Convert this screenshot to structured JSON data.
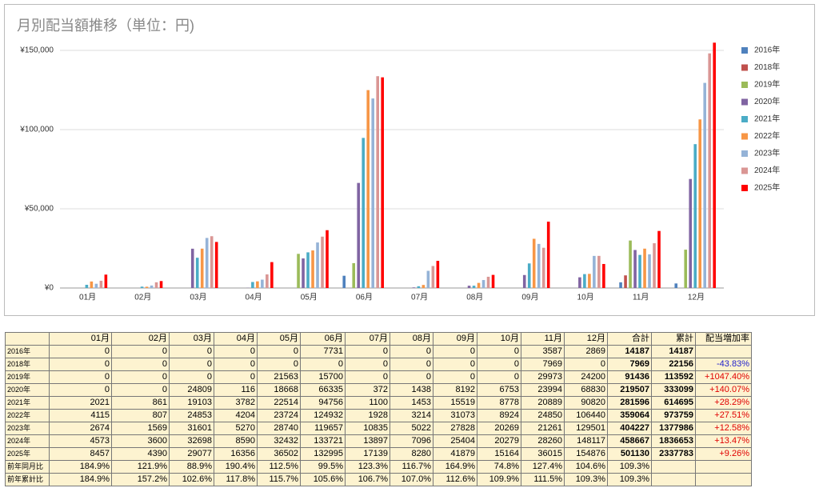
{
  "chart_data": {
    "type": "bar",
    "title": "月別配当額推移（単位：円)",
    "categories": [
      "01月",
      "02月",
      "03月",
      "04月",
      "05月",
      "06月",
      "07月",
      "08月",
      "09月",
      "10月",
      "11月",
      "12月"
    ],
    "ylim": [
      0,
      150000
    ],
    "yticks": [
      {
        "value": 0,
        "label": "¥0"
      },
      {
        "value": 50000,
        "label": "¥50,000"
      },
      {
        "value": 100000,
        "label": "¥100,000"
      },
      {
        "value": 150000,
        "label": "¥150,000"
      }
    ],
    "grid": true,
    "legend": "right",
    "series": [
      {
        "name": "2016年",
        "color": "#4f81bd",
        "values": [
          0,
          0,
          0,
          0,
          0,
          7731,
          0,
          0,
          0,
          0,
          3587,
          2869
        ]
      },
      {
        "name": "2018年",
        "color": "#c0504d",
        "values": [
          0,
          0,
          0,
          0,
          0,
          0,
          0,
          0,
          0,
          0,
          7969,
          0
        ]
      },
      {
        "name": "2019年",
        "color": "#9bbb59",
        "values": [
          0,
          0,
          0,
          0,
          21563,
          15700,
          0,
          0,
          0,
          0,
          29973,
          24200
        ]
      },
      {
        "name": "2020年",
        "color": "#8064a2",
        "values": [
          0,
          0,
          24809,
          116,
          18668,
          66335,
          372,
          1438,
          8192,
          6753,
          23994,
          68830
        ]
      },
      {
        "name": "2021年",
        "color": "#4bacc6",
        "values": [
          2021,
          861,
          19103,
          3782,
          22514,
          94756,
          1100,
          1453,
          15519,
          8778,
          20889,
          90820
        ]
      },
      {
        "name": "2022年",
        "color": "#f79646",
        "values": [
          4115,
          807,
          24853,
          4204,
          23724,
          124932,
          1928,
          3214,
          31073,
          8924,
          24850,
          106440
        ]
      },
      {
        "name": "2023年",
        "color": "#95b3d7",
        "values": [
          2674,
          1569,
          31601,
          5270,
          28740,
          119657,
          10835,
          5022,
          27828,
          20269,
          21261,
          129501
        ]
      },
      {
        "name": "2024年",
        "color": "#da9694",
        "values": [
          4573,
          3600,
          32698,
          8590,
          32432,
          133721,
          13897,
          7096,
          25404,
          20279,
          28260,
          148117
        ]
      },
      {
        "name": "2025年",
        "color": "#ff0000",
        "values": [
          8457,
          4390,
          29077,
          16356,
          36502,
          132995,
          17139,
          8280,
          41879,
          15164,
          36015,
          154876
        ]
      }
    ]
  },
  "table": {
    "header": [
      null,
      "01月",
      "02月",
      "03月",
      "04月",
      "05月",
      "06月",
      "07月",
      "08月",
      "09月",
      "10月",
      "11月",
      "12月",
      "合計",
      "累計",
      "配当増加率"
    ],
    "rows": [
      [
        "2016年",
        0,
        0,
        0,
        0,
        0,
        7731,
        0,
        0,
        0,
        0,
        3587,
        2869,
        14187,
        14187,
        null
      ],
      [
        "2018年",
        0,
        0,
        0,
        0,
        0,
        0,
        0,
        0,
        0,
        0,
        7969,
        0,
        7969,
        22156,
        "-43.83%"
      ],
      [
        "2019年",
        0,
        0,
        0,
        0,
        21563,
        15700,
        0,
        0,
        0,
        0,
        29973,
        24200,
        91436,
        113592,
        "+1047.40%"
      ],
      [
        "2020年",
        0,
        0,
        24809,
        116,
        18668,
        66335,
        372,
        1438,
        8192,
        6753,
        23994,
        68830,
        219507,
        333099,
        "+140.07%"
      ],
      [
        "2021年",
        2021,
        861,
        19103,
        3782,
        22514,
        94756,
        1100,
        1453,
        15519,
        8778,
        20889,
        90820,
        281596,
        614695,
        "+28.29%"
      ],
      [
        "2022年",
        4115,
        807,
        24853,
        4204,
        23724,
        124932,
        1928,
        3214,
        31073,
        8924,
        24850,
        106440,
        359064,
        973759,
        "+27.51%"
      ],
      [
        "2023年",
        2674,
        1569,
        31601,
        5270,
        28740,
        119657,
        10835,
        5022,
        27828,
        20269,
        21261,
        129501,
        404227,
        1377986,
        "+12.58%"
      ],
      [
        "2024年",
        4573,
        3600,
        32698,
        8590,
        32432,
        133721,
        13897,
        7096,
        25404,
        20279,
        28260,
        148117,
        458667,
        1836653,
        "+13.47%"
      ],
      [
        "2025年",
        8457,
        4390,
        29077,
        16356,
        36502,
        132995,
        17139,
        8280,
        41879,
        15164,
        36015,
        154876,
        501130,
        2337783,
        "+9.26%"
      ],
      [
        "前年同月比",
        "184.9%",
        "121.9%",
        "88.9%",
        "190.4%",
        "112.5%",
        "99.5%",
        "123.3%",
        "116.7%",
        "164.9%",
        "74.8%",
        "127.4%",
        "104.6%",
        "109.3%",
        null,
        null
      ],
      [
        "前年累計比",
        "184.9%",
        "157.2%",
        "102.6%",
        "117.8%",
        "115.7%",
        "105.6%",
        "106.7%",
        "107.0%",
        "112.6%",
        "109.9%",
        "111.5%",
        "109.3%",
        "109.3%",
        null,
        null
      ]
    ]
  }
}
